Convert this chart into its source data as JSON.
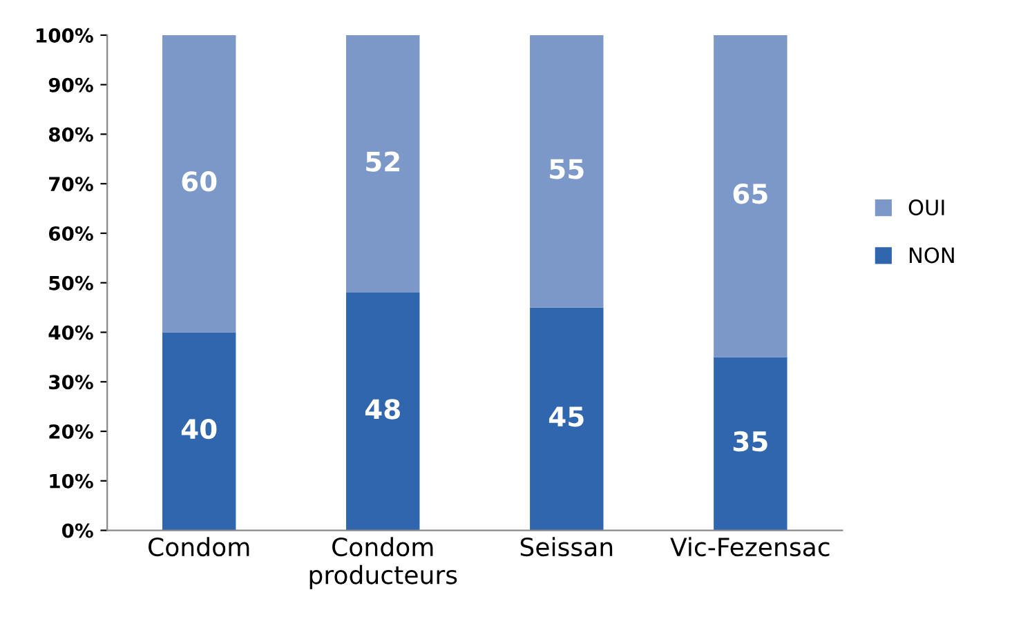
{
  "chart_data": {
    "type": "bar",
    "stacked": true,
    "categories": [
      "Condom",
      "Condom\nproducteurs",
      "Seissan",
      "Vic-Fezensac"
    ],
    "series": [
      {
        "name": "NON",
        "color": "#3066ad",
        "values": [
          40,
          48,
          45,
          35
        ]
      },
      {
        "name": "OUI",
        "color": "#7b98c8",
        "values": [
          60,
          52,
          55,
          65
        ]
      }
    ],
    "ylim": [
      0,
      100
    ],
    "yticks": [
      {
        "value": 0,
        "label": "0%"
      },
      {
        "value": 10,
        "label": "10%"
      },
      {
        "value": 20,
        "label": "20%"
      },
      {
        "value": 30,
        "label": "30%"
      },
      {
        "value": 40,
        "label": "40%"
      },
      {
        "value": 50,
        "label": "50%"
      },
      {
        "value": 60,
        "label": "60%"
      },
      {
        "value": 70,
        "label": "70%"
      },
      {
        "value": 80,
        "label": "80%"
      },
      {
        "value": 90,
        "label": "90%"
      },
      {
        "value": 100,
        "label": "100%"
      }
    ],
    "data_labels": true,
    "grid": false,
    "legend": "right"
  }
}
